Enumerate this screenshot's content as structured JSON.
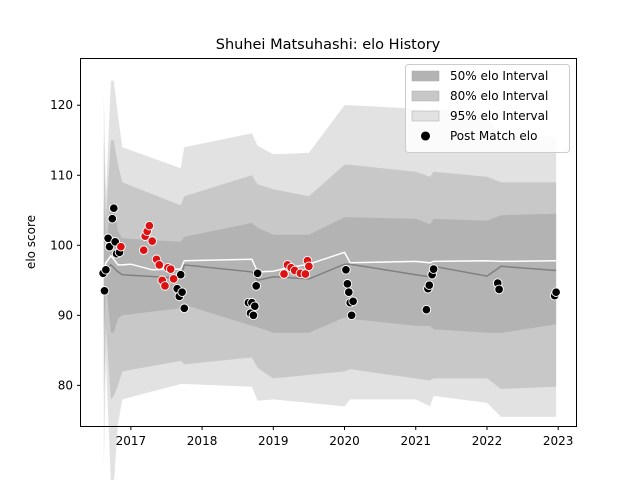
{
  "chart_data": {
    "type": "line",
    "title": "Shuhei Matsuhashi: elo History",
    "xlabel": "",
    "ylabel": "elo score",
    "xlim": [
      2016.3,
      2023.25
    ],
    "ylim": [
      74.2,
      126.6
    ],
    "xticks": [
      2017,
      2018,
      2019,
      2020,
      2021,
      2022,
      2023
    ],
    "yticks": [
      80,
      90,
      100,
      110,
      120
    ],
    "grid": false,
    "legend": {
      "position": "top-right",
      "entries": [
        {
          "label": "50% elo Interval",
          "color": "#b3b3b3"
        },
        {
          "label": "80% elo Interval",
          "color": "#c8c8c8"
        },
        {
          "label": "95% elo Interval",
          "color": "#e2e2e2"
        },
        {
          "label": "Post Match elo",
          "color": "#000000"
        }
      ]
    },
    "colors": {
      "band50": "#b3b3b3",
      "band80": "#c8c8c8",
      "band95": "#e2e2e2",
      "mean_line": "#808080",
      "expected_line": "#ffffff",
      "point_black": "#000000",
      "point_red": "#dd1111"
    },
    "bands": {
      "x": [
        2016.62,
        2016.65,
        2016.72,
        2016.76,
        2016.82,
        2016.88,
        2017.7,
        2017.75,
        2018.7,
        2018.78,
        2019.0,
        2019.5,
        2020.0,
        2020.08,
        2021.0,
        2021.2,
        2021.25,
        2022.0,
        2022.2,
        2022.97
      ],
      "p95_upper": [
        122.0,
        107.0,
        123.5,
        123.5,
        118.5,
        114.0,
        111.0,
        114.0,
        116.0,
        114.2,
        113.0,
        113.2,
        120.0,
        120.0,
        119.5,
        118.5,
        119.5,
        118.5,
        115.5,
        115.5
      ],
      "p80_upper": [
        115.0,
        104.0,
        115.0,
        115.0,
        111.5,
        109.0,
        105.7,
        107.0,
        110.0,
        108.7,
        108.0,
        107.0,
        111.5,
        111.5,
        110.5,
        109.8,
        110.5,
        109.8,
        109.0,
        109.0
      ],
      "p50_upper": [
        106.0,
        99.5,
        106.0,
        106.0,
        102.0,
        101.0,
        100.5,
        101.2,
        103.2,
        102.5,
        101.5,
        101.5,
        104.0,
        104.0,
        103.8,
        103.0,
        103.8,
        103.5,
        104.3,
        104.5
      ],
      "p50_lower": [
        87.5,
        94.5,
        87.5,
        87.5,
        89.5,
        90.0,
        91.0,
        91.5,
        88.5,
        88.3,
        87.5,
        87.5,
        89.7,
        89.5,
        88.5,
        88.5,
        88.0,
        87.5,
        87.5,
        88.7
      ],
      "p80_lower": [
        78.5,
        88.5,
        78.0,
        78.5,
        80.0,
        82.0,
        83.5,
        83.0,
        84.0,
        82.5,
        81.0,
        81.5,
        82.0,
        82.3,
        81.0,
        80.7,
        81.0,
        81.0,
        79.5,
        79.8
      ],
      "p95_lower": [
        68.0,
        84.0,
        66.0,
        66.0,
        74.5,
        78.0,
        80.2,
        80.2,
        79.8,
        77.8,
        78.0,
        77.5,
        77.0,
        78.0,
        78.0,
        77.0,
        78.5,
        77.5,
        75.5,
        75.5
      ]
    },
    "mean_line": {
      "x": [
        2016.62,
        2016.72,
        2016.82,
        2016.88,
        2017.7,
        2017.75,
        2018.7,
        2018.78,
        2019.0,
        2019.5,
        2020.0,
        2020.08,
        2021.0,
        2021.2,
        2021.25,
        2022.0,
        2022.2,
        2022.97
      ],
      "y": [
        96.5,
        97.2,
        96.2,
        95.8,
        95.3,
        97.2,
        96.2,
        95.0,
        95.5,
        95.2,
        97.3,
        97.3,
        95.8,
        95.5,
        97.0,
        95.6,
        97.0,
        96.4
      ]
    },
    "expected_line": {
      "x": [
        2016.62,
        2016.65,
        2016.72,
        2016.76,
        2016.82,
        2016.88,
        2017.0,
        2017.3,
        2017.6,
        2017.7,
        2017.75,
        2018.7,
        2018.78,
        2019.0,
        2019.2,
        2019.5,
        2020.0,
        2020.08,
        2021.0,
        2021.2,
        2021.25,
        2022.0,
        2022.2,
        2022.97
      ],
      "y": [
        96.5,
        97.5,
        98.5,
        98.0,
        97.2,
        97.2,
        97.3,
        96.5,
        96.6,
        96.6,
        97.8,
        98.0,
        96.2,
        96.3,
        96.8,
        97.3,
        99.0,
        97.5,
        97.7,
        97.5,
        97.7,
        97.8,
        97.7,
        97.8
      ]
    },
    "points_black": {
      "x": [
        2016.61,
        2016.63,
        2016.65,
        2016.68,
        2016.7,
        2016.74,
        2016.76,
        2016.78,
        2016.8,
        2016.84,
        2017.65,
        2017.68,
        2017.7,
        2017.72,
        2017.75,
        2018.65,
        2018.68,
        2018.7,
        2018.72,
        2018.74,
        2018.76,
        2018.78,
        2020.02,
        2020.04,
        2020.06,
        2020.08,
        2020.1,
        2020.12,
        2021.15,
        2021.17,
        2021.19,
        2021.23,
        2021.25,
        2022.15,
        2022.17,
        2022.95,
        2022.97
      ],
      "y": [
        96.0,
        93.5,
        96.5,
        101.0,
        99.8,
        103.8,
        105.3,
        100.5,
        98.8,
        99.0,
        93.8,
        92.7,
        95.8,
        93.3,
        91.0,
        91.8,
        90.3,
        91.8,
        90.0,
        91.3,
        94.2,
        96.0,
        96.5,
        94.5,
        93.3,
        91.8,
        90.0,
        92.0,
        90.8,
        93.8,
        94.3,
        95.8,
        96.6,
        94.6,
        93.7,
        92.8,
        93.3
      ]
    },
    "points_red": {
      "x": [
        2016.86,
        2017.18,
        2017.2,
        2017.23,
        2017.26,
        2017.3,
        2017.36,
        2017.4,
        2017.44,
        2017.48,
        2017.52,
        2017.56,
        2017.6,
        2019.15,
        2019.2,
        2019.25,
        2019.3,
        2019.38,
        2019.45,
        2019.48,
        2019.5
      ],
      "y": [
        99.8,
        99.3,
        101.3,
        102.0,
        102.8,
        100.6,
        98.0,
        97.2,
        95.0,
        94.2,
        96.8,
        96.6,
        95.2,
        95.9,
        97.2,
        96.8,
        96.4,
        96.0,
        95.9,
        97.8,
        97.0
      ]
    }
  }
}
